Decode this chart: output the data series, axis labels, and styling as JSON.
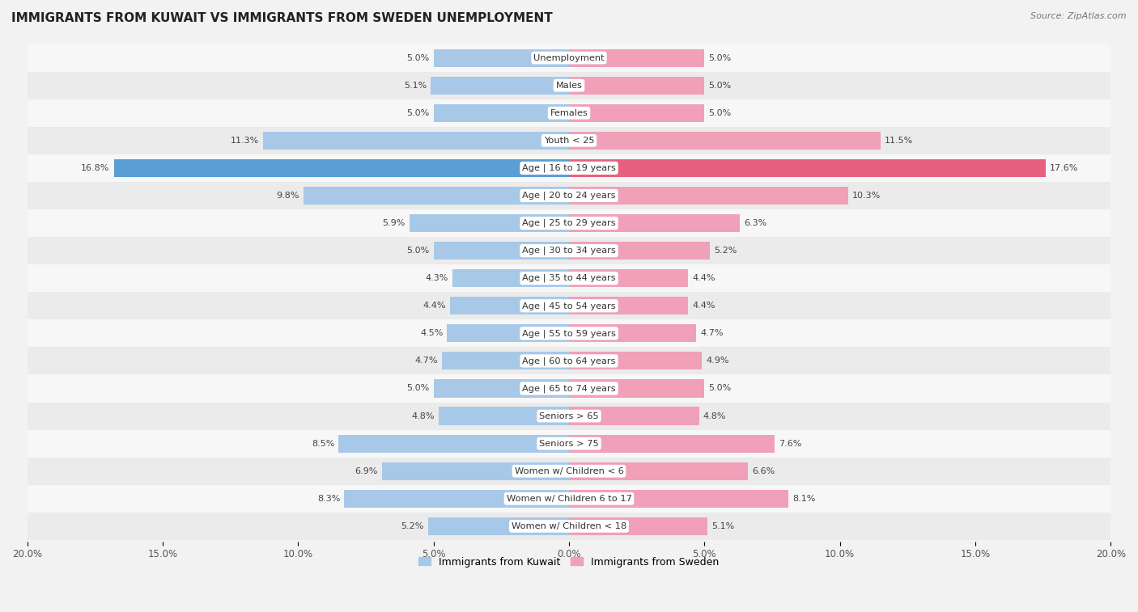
{
  "title": "IMMIGRANTS FROM KUWAIT VS IMMIGRANTS FROM SWEDEN UNEMPLOYMENT",
  "source": "Source: ZipAtlas.com",
  "categories": [
    "Unemployment",
    "Males",
    "Females",
    "Youth < 25",
    "Age | 16 to 19 years",
    "Age | 20 to 24 years",
    "Age | 25 to 29 years",
    "Age | 30 to 34 years",
    "Age | 35 to 44 years",
    "Age | 45 to 54 years",
    "Age | 55 to 59 years",
    "Age | 60 to 64 years",
    "Age | 65 to 74 years",
    "Seniors > 65",
    "Seniors > 75",
    "Women w/ Children < 6",
    "Women w/ Children 6 to 17",
    "Women w/ Children < 18"
  ],
  "kuwait_values": [
    5.0,
    5.1,
    5.0,
    11.3,
    16.8,
    9.8,
    5.9,
    5.0,
    4.3,
    4.4,
    4.5,
    4.7,
    5.0,
    4.8,
    8.5,
    6.9,
    8.3,
    5.2
  ],
  "sweden_values": [
    5.0,
    5.0,
    5.0,
    11.5,
    17.6,
    10.3,
    6.3,
    5.2,
    4.4,
    4.4,
    4.7,
    4.9,
    5.0,
    4.8,
    7.6,
    6.6,
    8.1,
    5.1
  ],
  "kuwait_color": "#a8c8e8",
  "sweden_color": "#f0a0b8",
  "kuwait_highlight_color": "#5a9fd4",
  "sweden_highlight_color": "#e86080",
  "background_color": "#f2f2f2",
  "row_colors": [
    "#f7f7f7",
    "#ebebeb"
  ],
  "max_value": 20.0,
  "legend_kuwait": "Immigrants from Kuwait",
  "legend_sweden": "Immigrants from Sweden",
  "label_bg": "#ffffff"
}
